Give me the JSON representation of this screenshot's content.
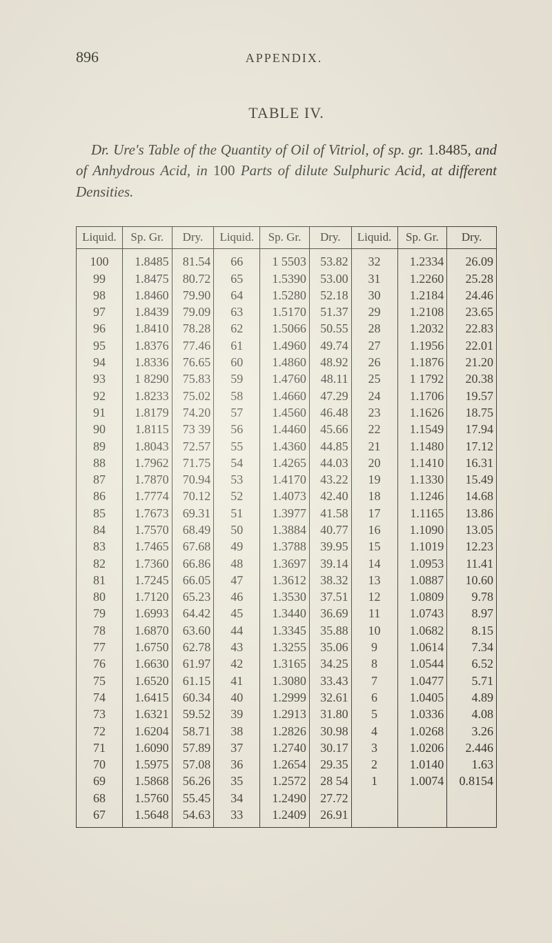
{
  "header": {
    "page_number": "896",
    "running_head": "APPENDIX."
  },
  "table_label": "TABLE IV.",
  "caption_html": "<span class='ital'>Dr. Ure's Table of the Quantity of Oil of Vitriol, of sp. gr.</span> 1.8485, <span class='ital'>and of Anhydrous Acid, in</span> 100 <span class='ital'>Parts of dilute Sulphuric Acid, at different Densities.</span>",
  "table": {
    "columns": [
      "Liquid.",
      "Sp. Gr.",
      "Dry.",
      "Liquid.",
      "Sp. Gr.",
      "Dry.",
      "Liquid.",
      "Sp. Gr.",
      "Dry."
    ],
    "rows": [
      [
        "100",
        "1.8485",
        "81.54",
        "66",
        "1 5503",
        "53.82",
        "32",
        "1.2334",
        "26.09"
      ],
      [
        "99",
        "1.8475",
        "80.72",
        "65",
        "1.5390",
        "53.00",
        "31",
        "1.2260",
        "25.28"
      ],
      [
        "98",
        "1.8460",
        "79.90",
        "64",
        "1.5280",
        "52.18",
        "30",
        "1.2184",
        "24.46"
      ],
      [
        "97",
        "1.8439",
        "79.09",
        "63",
        "1.5170",
        "51.37",
        "29",
        "1.2108",
        "23.65"
      ],
      [
        "96",
        "1.8410",
        "78.28",
        "62",
        "1.5066",
        "50.55",
        "28",
        "1.2032",
        "22.83"
      ],
      [
        "95",
        "1.8376",
        "77.46",
        "61",
        "1.4960",
        "49.74",
        "27",
        "1.1956",
        "22.01"
      ],
      [
        "94",
        "1.8336",
        "76.65",
        "60",
        "1.4860",
        "48.92",
        "26",
        "1.1876",
        "21.20"
      ],
      [
        "93",
        "1 8290",
        "75.83",
        "59",
        "1.4760",
        "48.11",
        "25",
        "1 1792",
        "20.38"
      ],
      [
        "92",
        "1.8233",
        "75.02",
        "58",
        "1.4660",
        "47.29",
        "24",
        "1.1706",
        "19.57"
      ],
      [
        "91",
        "1.8179",
        "74.20",
        "57",
        "1.4560",
        "46.48",
        "23",
        "1.1626",
        "18.75"
      ],
      [
        "90",
        "1.8115",
        "73 39",
        "56",
        "1.4460",
        "45.66",
        "22",
        "1.1549",
        "17.94"
      ],
      [
        "89",
        "1.8043",
        "72.57",
        "55",
        "1.4360",
        "44.85",
        "21",
        "1.1480",
        "17.12"
      ],
      [
        "88",
        "1.7962",
        "71.75",
        "54",
        "1.4265",
        "44.03",
        "20",
        "1.1410",
        "16.31"
      ],
      [
        "87",
        "1.7870",
        "70.94",
        "53",
        "1.4170",
        "43.22",
        "19",
        "1.1330",
        "15.49"
      ],
      [
        "86",
        "1.7774",
        "70.12",
        "52",
        "1.4073",
        "42.40",
        "18",
        "1.1246",
        "14.68"
      ],
      [
        "85",
        "1.7673",
        "69.31",
        "51",
        "1.3977",
        "41.58",
        "17",
        "1.1165",
        "13.86"
      ],
      [
        "84",
        "1.7570",
        "68.49",
        "50",
        "1.3884",
        "40.77",
        "16",
        "1.1090",
        "13.05"
      ],
      [
        "83",
        "1.7465",
        "67.68",
        "49",
        "1.3788",
        "39.95",
        "15",
        "1.1019",
        "12.23"
      ],
      [
        "82",
        "1.7360",
        "66.86",
        "48",
        "1.3697",
        "39.14",
        "14",
        "1.0953",
        "11.41"
      ],
      [
        "81",
        "1.7245",
        "66.05",
        "47",
        "1.3612",
        "38.32",
        "13",
        "1.0887",
        "10.60"
      ],
      [
        "80",
        "1.7120",
        "65.23",
        "46",
        "1.3530",
        "37.51",
        "12",
        "1.0809",
        "9.78"
      ],
      [
        "79",
        "1.6993",
        "64.42",
        "45",
        "1.3440",
        "36.69",
        "11",
        "1.0743",
        "8.97"
      ],
      [
        "78",
        "1.6870",
        "63.60",
        "44",
        "1.3345",
        "35.88",
        "10",
        "1.0682",
        "8.15"
      ],
      [
        "77",
        "1.6750",
        "62.78",
        "43",
        "1.3255",
        "35.06",
        "9",
        "1.0614",
        "7.34"
      ],
      [
        "76",
        "1.6630",
        "61.97",
        "42",
        "1.3165",
        "34.25",
        "8",
        "1.0544",
        "6.52"
      ],
      [
        "75",
        "1.6520",
        "61.15",
        "41",
        "1.3080",
        "33.43",
        "7",
        "1.0477",
        "5.71"
      ],
      [
        "74",
        "1.6415",
        "60.34",
        "40",
        "1.2999",
        "32.61",
        "6",
        "1.0405",
        "4.89"
      ],
      [
        "73",
        "1.6321",
        "59.52",
        "39",
        "1.2913",
        "31.80",
        "5",
        "1.0336",
        "4.08"
      ],
      [
        "72",
        "1.6204",
        "58.71",
        "38",
        "1.2826",
        "30.98",
        "4",
        "1.0268",
        "3.26"
      ],
      [
        "71",
        "1.6090",
        "57.89",
        "37",
        "1.2740",
        "30.17",
        "3",
        "1.0206",
        "2.446"
      ],
      [
        "70",
        "1.5975",
        "57.08",
        "36",
        "1.2654",
        "29.35",
        "2",
        "1.0140",
        "1.63"
      ],
      [
        "69",
        "1.5868",
        "56.26",
        "35",
        "1.2572",
        "28 54",
        "1",
        "1.0074",
        "0.8154"
      ],
      [
        "68",
        "1.5760",
        "55.45",
        "34",
        "1.2490",
        "27.72",
        "",
        "",
        ""
      ],
      [
        "67",
        "1.5648",
        "54.63",
        "33",
        "1.2409",
        "26.91",
        "",
        "",
        ""
      ]
    ]
  }
}
